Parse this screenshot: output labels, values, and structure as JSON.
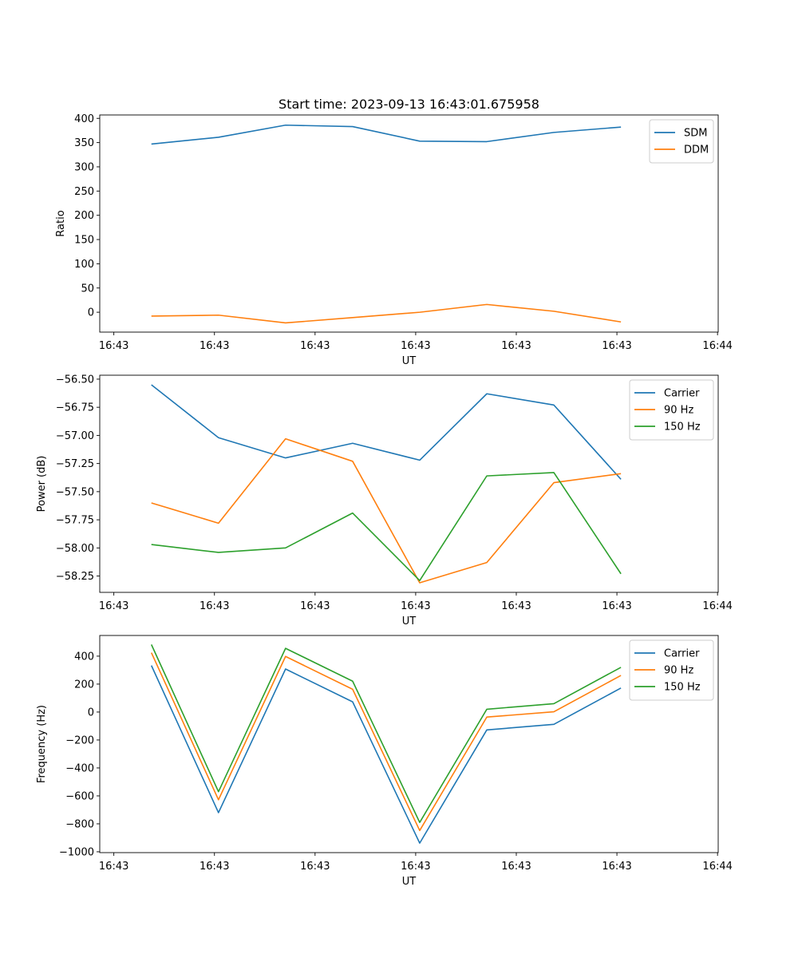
{
  "figure": {
    "title": "Start time: 2023-09-13 16:43:01.675958"
  },
  "chart_data": [
    {
      "type": "line",
      "xlabel": "UT",
      "ylabel": "Ratio",
      "ylim": [
        -41,
        407
      ],
      "yticks": [
        0,
        50,
        100,
        150,
        200,
        250,
        300,
        350,
        400
      ],
      "ytick_labels": [
        "0",
        "50",
        "100",
        "150",
        "200",
        "250",
        "300",
        "350",
        "400"
      ],
      "xlim": [
        -0.77,
        8.45
      ],
      "xticks": [
        -0.56,
        0.94,
        2.44,
        3.94,
        5.44,
        6.94,
        8.44
      ],
      "xtick_labels": [
        "16:43",
        "16:43",
        "16:43",
        "16:43",
        "16:43",
        "16:43",
        "16:44"
      ],
      "x": [
        0,
        1,
        2,
        3,
        4,
        5,
        6,
        7
      ],
      "series": [
        {
          "name": "SDM",
          "color": "#1f77b4",
          "values": [
            347,
            361,
            386,
            383,
            353,
            352,
            371,
            382
          ]
        },
        {
          "name": "DDM",
          "color": "#ff7f0e",
          "values": [
            -8,
            -6,
            -22,
            -11,
            0,
            16,
            2,
            -20
          ]
        }
      ],
      "legend": "top-right"
    },
    {
      "type": "line",
      "xlabel": "UT",
      "ylabel": "Power (dB)",
      "ylim": [
        -58.395,
        -56.465
      ],
      "yticks": [
        -58.25,
        -58.0,
        -57.75,
        -57.5,
        -57.25,
        -57.0,
        -56.75,
        -56.5
      ],
      "ytick_labels": [
        "−58.25",
        "−58.00",
        "−57.75",
        "−57.50",
        "−57.25",
        "−57.00",
        "−56.75",
        "−56.50"
      ],
      "xlim": [
        -0.77,
        8.45
      ],
      "xticks": [
        -0.56,
        0.94,
        2.44,
        3.94,
        5.44,
        6.94,
        8.44
      ],
      "xtick_labels": [
        "16:43",
        "16:43",
        "16:43",
        "16:43",
        "16:43",
        "16:43",
        "16:44"
      ],
      "x": [
        0,
        1,
        2,
        3,
        4,
        5,
        6,
        7
      ],
      "series": [
        {
          "name": "Carrier",
          "color": "#1f77b4",
          "values": [
            -56.55,
            -57.02,
            -57.2,
            -57.07,
            -57.22,
            -56.63,
            -56.73,
            -57.39
          ]
        },
        {
          "name": "90 Hz",
          "color": "#ff7f0e",
          "values": [
            -57.6,
            -57.78,
            -57.03,
            -57.23,
            -58.31,
            -58.13,
            -57.42,
            -57.34
          ]
        },
        {
          "name": "150 Hz",
          "color": "#2ca02c",
          "values": [
            -57.97,
            -58.04,
            -58.0,
            -57.69,
            -58.29,
            -57.36,
            -57.33,
            -58.23
          ]
        }
      ],
      "legend": "top-right"
    },
    {
      "type": "line",
      "xlabel": "UT",
      "ylabel": "Frequency (Hz)",
      "ylim": [
        -1006,
        548
      ],
      "yticks": [
        -1000,
        -800,
        -600,
        -400,
        -200,
        0,
        200,
        400
      ],
      "ytick_labels": [
        "−1000",
        "−800",
        "−600",
        "−400",
        "−200",
        "0",
        "200",
        "400"
      ],
      "xlim": [
        -0.77,
        8.45
      ],
      "xticks": [
        -0.56,
        0.94,
        2.44,
        3.94,
        5.44,
        6.94,
        8.44
      ],
      "xtick_labels": [
        "16:43",
        "16:43",
        "16:43",
        "16:43",
        "16:43",
        "16:43",
        "16:44"
      ],
      "x": [
        0,
        1,
        2,
        3,
        4,
        5,
        6,
        7
      ],
      "series": [
        {
          "name": "Carrier",
          "color": "#1f77b4",
          "values": [
            333,
            -720,
            308,
            73,
            -938,
            -128,
            -88,
            172
          ]
        },
        {
          "name": "90 Hz",
          "color": "#ff7f0e",
          "values": [
            425,
            -628,
            398,
            163,
            -848,
            -36,
            2,
            262
          ]
        },
        {
          "name": "150 Hz",
          "color": "#2ca02c",
          "values": [
            483,
            -570,
            456,
            221,
            -790,
            20,
            60,
            320
          ]
        }
      ],
      "legend": "top-right"
    }
  ]
}
